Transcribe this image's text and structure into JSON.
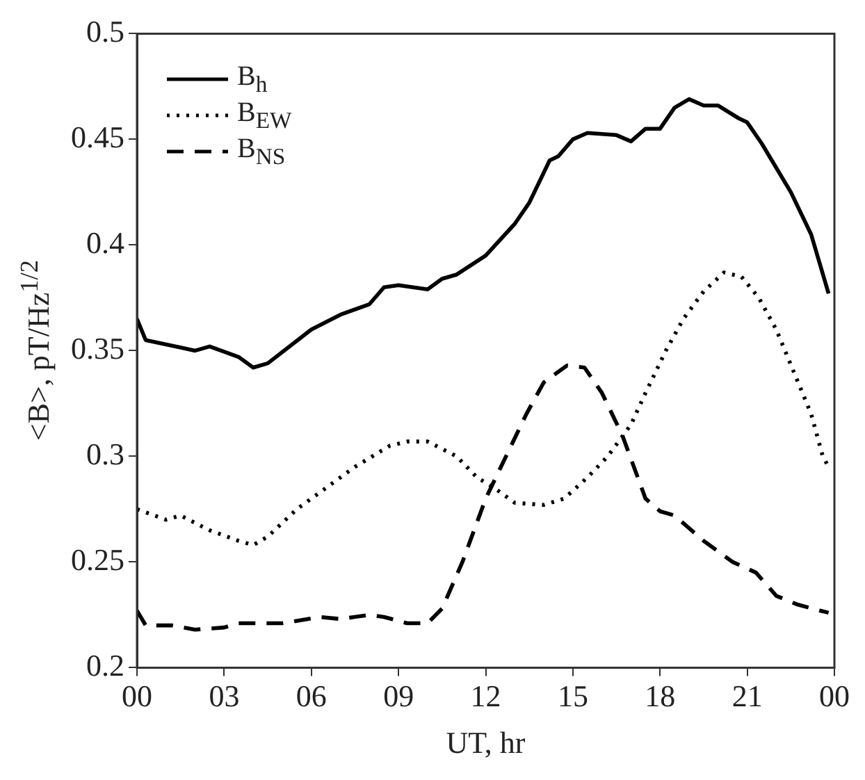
{
  "chart_data": {
    "type": "line",
    "xlabel": "UT, hr",
    "ylabel": "<B>, pT/Hz$^{1/2}$",
    "xlim": [
      0,
      24
    ],
    "ylim": [
      0.2,
      0.5
    ],
    "xticks": [
      {
        "value": 0,
        "label": "00"
      },
      {
        "value": 3,
        "label": "03"
      },
      {
        "value": 6,
        "label": "06"
      },
      {
        "value": 9,
        "label": "09"
      },
      {
        "value": 12,
        "label": "12"
      },
      {
        "value": 15,
        "label": "15"
      },
      {
        "value": 18,
        "label": "18"
      },
      {
        "value": 21,
        "label": "21"
      },
      {
        "value": 24,
        "label": "00"
      }
    ],
    "yticks": [
      0.2,
      0.25,
      0.3,
      0.35,
      0.4,
      0.45,
      0.5
    ],
    "grid": false,
    "legend": "top left",
    "marker": "none",
    "series": [
      {
        "name": "B$_{h}$",
        "color": "#000000",
        "line_style": "solid",
        "x": [
          0,
          0.3,
          2,
          2.5,
          3.5,
          4,
          4.5,
          6,
          7,
          8,
          8.5,
          9,
          10,
          10.5,
          11,
          12,
          13,
          13.5,
          14.2,
          14.5,
          15,
          15.5,
          16.5,
          17,
          17.5,
          18,
          18.5,
          19,
          19.5,
          20,
          20.7,
          21,
          21.5,
          22.5,
          23.2,
          23.8
        ],
        "values": [
          0.365,
          0.355,
          0.35,
          0.352,
          0.347,
          0.342,
          0.344,
          0.36,
          0.367,
          0.372,
          0.38,
          0.381,
          0.379,
          0.384,
          0.386,
          0.395,
          0.41,
          0.42,
          0.44,
          0.442,
          0.45,
          0.453,
          0.452,
          0.449,
          0.455,
          0.455,
          0.465,
          0.469,
          0.466,
          0.466,
          0.46,
          0.458,
          0.448,
          0.425,
          0.405,
          0.377
        ]
      },
      {
        "name": "B$_{EW}$",
        "color": "#000000",
        "line_style": "dotted",
        "x": [
          0,
          1,
          1.5,
          2.5,
          3.5,
          4,
          4.5,
          5.5,
          6.5,
          7.5,
          8.7,
          9.3,
          10,
          11,
          11.7,
          12.3,
          13,
          14,
          14.7,
          15.5,
          16.2,
          17,
          17.5,
          18.2,
          18.8,
          19.5,
          20.2,
          20.8,
          21.4,
          22,
          22.6,
          23.2,
          23.6,
          23.8
        ],
        "values": [
          0.275,
          0.27,
          0.272,
          0.265,
          0.26,
          0.258,
          0.262,
          0.275,
          0.285,
          0.295,
          0.305,
          0.307,
          0.307,
          0.3,
          0.29,
          0.285,
          0.278,
          0.277,
          0.28,
          0.29,
          0.3,
          0.315,
          0.33,
          0.35,
          0.365,
          0.378,
          0.387,
          0.385,
          0.375,
          0.36,
          0.34,
          0.32,
          0.3,
          0.295
        ]
      },
      {
        "name": "B$_{NS}$",
        "color": "#000000",
        "line_style": "dashed",
        "x": [
          0,
          0.3,
          1.2,
          2,
          3,
          3.5,
          5,
          6.3,
          7,
          8,
          8.5,
          9.3,
          10,
          10.5,
          11.2,
          12,
          12.7,
          13.4,
          14,
          14.8,
          15.4,
          16,
          16.7,
          17.5,
          18,
          18.5,
          19.5,
          20.5,
          21.3,
          22,
          22.7,
          23.5,
          23.8
        ],
        "values": [
          0.227,
          0.22,
          0.22,
          0.218,
          0.219,
          0.221,
          0.221,
          0.224,
          0.223,
          0.225,
          0.224,
          0.221,
          0.221,
          0.228,
          0.25,
          0.28,
          0.3,
          0.32,
          0.335,
          0.343,
          0.342,
          0.33,
          0.31,
          0.28,
          0.274,
          0.272,
          0.26,
          0.25,
          0.245,
          0.234,
          0.23,
          0.227,
          0.226
        ]
      }
    ]
  }
}
